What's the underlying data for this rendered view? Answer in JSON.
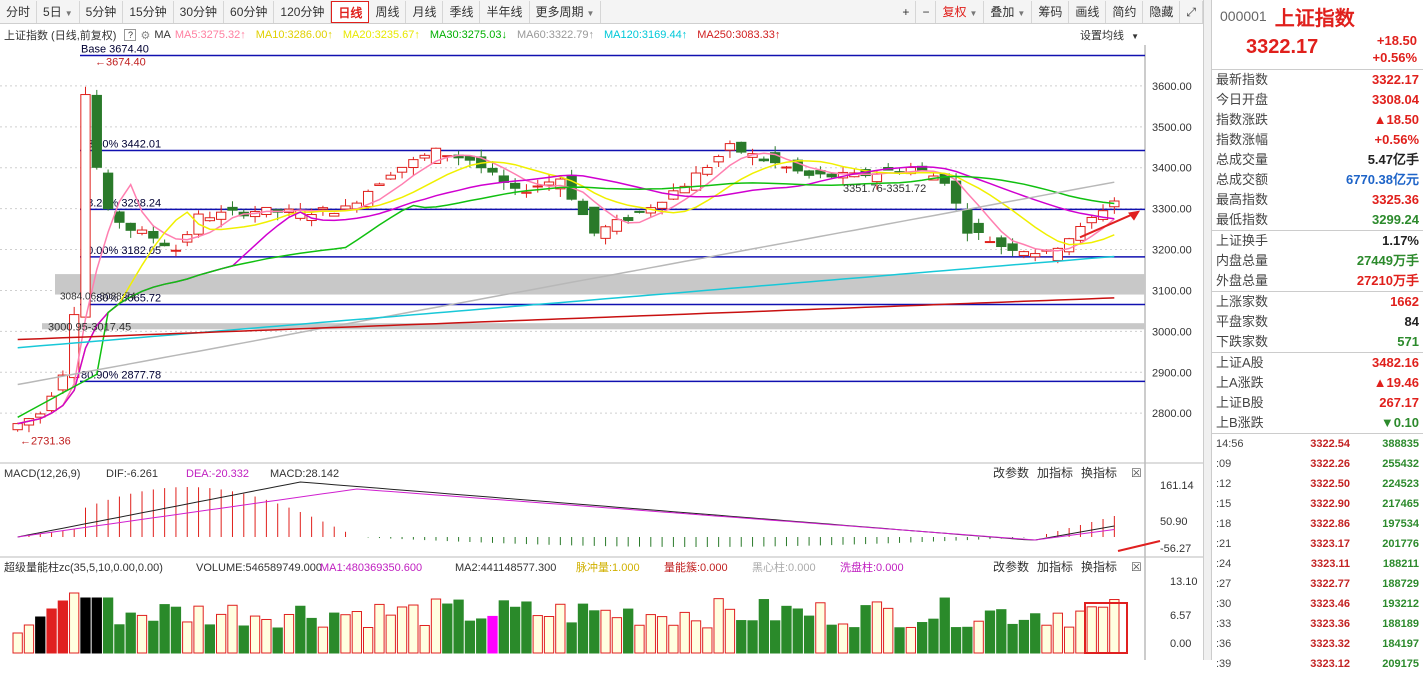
{
  "toolbar": {
    "periods": [
      "分时",
      "5日",
      "5分钟",
      "15分钟",
      "30分钟",
      "60分钟",
      "120分钟",
      "日线",
      "周线",
      "月线",
      "季线",
      "半年线",
      "更多周期"
    ],
    "active_period": "日线",
    "right_buttons": [
      "+",
      "−",
      "复权",
      "叠加",
      "筹码",
      "画线",
      "简约",
      "隐藏",
      "⤢"
    ]
  },
  "chart_header": {
    "title": "上证指数 (日线,前复权)",
    "ma_labels": [
      "MA5:3275.32",
      "MA10:3286.00",
      "MA20:3235.67",
      "MA30:3275.03",
      "MA60:3322.79",
      "MA120:3169.44",
      "MA250:3083.33"
    ],
    "ma_colors": [
      "#ff7fa0",
      "#e0d000",
      "#e8e800",
      "#00b000",
      "#999999",
      "#00c8d8",
      "#d02020"
    ],
    "ma_arrows": [
      "↑",
      "↑",
      "↑",
      "↓",
      "↑",
      "↑",
      "↑"
    ],
    "ma_label": "MA",
    "settings_label": "设置均线"
  },
  "price_axis": [
    "3600.00",
    "3500.00",
    "3400.00",
    "3300.00",
    "3200.00",
    "3100.00",
    "3000.00",
    "2900.00",
    "2800.00"
  ],
  "fib_lines": [
    {
      "label": "Base  3674.40",
      "value": 3674.4
    },
    {
      "label": "23.60% 3442.01",
      "value": 3442.01
    },
    {
      "label": "38.20% 3298.24",
      "value": 3298.24
    },
    {
      "label": "50.00% 3182.05",
      "value": 3182.05
    },
    {
      "label": "61.80% 3065.72",
      "value": 3065.72
    },
    {
      "label": "80.90% 2877.78",
      "value": 2877.78
    }
  ],
  "annotations": {
    "high": "3674.40",
    "low": "2731.36",
    "mid": "3351.76-3351.72",
    "gap": "3000.95-3017.45",
    "gap2": "3084.06-3088.74"
  },
  "macd": {
    "label": "MACD(12,26,9)",
    "dif": "DIF:-6.261",
    "dea": "DEA:-20.332",
    "macd": "MACD:28.142",
    "axis": [
      "161.14",
      "50.90",
      "-56.27"
    ],
    "buttons": [
      "改参数",
      "加指标",
      "换指标"
    ]
  },
  "volume": {
    "label": "超级量能柱zc(35,5,10,0.00,0.00)",
    "volume": "VOLUME:546589749.000",
    "ma1": "MA1:480369350.600",
    "ma2": "MA2:441148577.300",
    "tags": [
      "脉冲量:1.000",
      "量能簇:0.000",
      "黑心柱:0.000",
      "洗盘柱:0.000"
    ],
    "axis": [
      "13.10",
      "6.57",
      "0.00"
    ],
    "buttons": [
      "改参数",
      "加指标",
      "换指标"
    ]
  },
  "sidebar": {
    "code": "000001",
    "name": "上证指数",
    "price": "3322.17",
    "change": "+18.50",
    "change_pct": "+0.56%",
    "stats": [
      {
        "label": "最新指数",
        "value": "3322.17",
        "color": "red"
      },
      {
        "label": "今日开盘",
        "value": "3308.04",
        "color": "red"
      },
      {
        "label": "指数涨跌",
        "value": "▲18.50",
        "color": "red"
      },
      {
        "label": "指数涨幅",
        "value": "+0.56%",
        "color": "red"
      },
      {
        "label": "总成交量",
        "value": "5.47亿手",
        "color": "dark"
      },
      {
        "label": "总成交额",
        "value": "6770.38亿元",
        "color": "blue"
      },
      {
        "label": "最高指数",
        "value": "3325.36",
        "color": "red"
      },
      {
        "label": "最低指数",
        "value": "3299.24",
        "color": "green"
      }
    ],
    "stats2": [
      {
        "label": "上证换手",
        "value": "1.17%",
        "color": "dark"
      },
      {
        "label": "内盘总量",
        "value": "27449万手",
        "color": "green"
      },
      {
        "label": "外盘总量",
        "value": "27210万手",
        "color": "red"
      }
    ],
    "stats3": [
      {
        "label": "上涨家数",
        "value": "1662",
        "color": "red"
      },
      {
        "label": "平盘家数",
        "value": "84",
        "color": "dark"
      },
      {
        "label": "下跌家数",
        "value": "571",
        "color": "green"
      }
    ],
    "stats4": [
      {
        "label": "上证A股",
        "value": "3482.16",
        "color": "red"
      },
      {
        "label": "上A涨跌",
        "value": "▲19.46",
        "color": "red"
      },
      {
        "label": "上证B股",
        "value": "267.17",
        "color": "red"
      },
      {
        "label": "上B涨跌",
        "value": "▼0.10",
        "color": "green"
      }
    ],
    "ticks": [
      {
        "t": "14:56",
        "p": "3322.54",
        "v": "388835"
      },
      {
        "t": ":09",
        "p": "3322.26",
        "v": "255432"
      },
      {
        "t": ":12",
        "p": "3322.50",
        "v": "224523"
      },
      {
        "t": ":15",
        "p": "3322.90",
        "v": "217465"
      },
      {
        "t": ":18",
        "p": "3322.86",
        "v": "197534"
      },
      {
        "t": ":21",
        "p": "3323.17",
        "v": "201776"
      },
      {
        "t": ":24",
        "p": "3323.11",
        "v": "188211"
      },
      {
        "t": ":27",
        "p": "3322.77",
        "v": "188729"
      },
      {
        "t": ":30",
        "p": "3323.46",
        "v": "193212"
      },
      {
        "t": ":33",
        "p": "3323.36",
        "v": "188189"
      },
      {
        "t": ":36",
        "p": "3323.32",
        "v": "184197"
      },
      {
        "t": ":39",
        "p": "3323.12",
        "v": "209175"
      }
    ]
  }
}
